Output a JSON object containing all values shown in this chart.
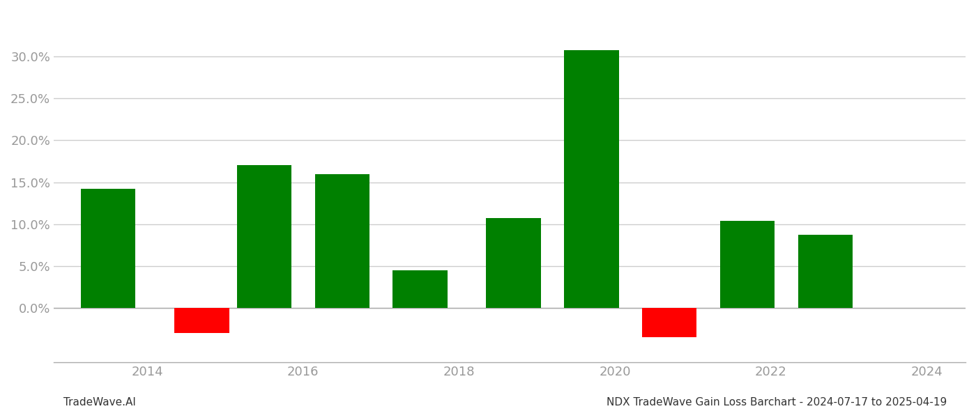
{
  "years": [
    2013.5,
    2014.7,
    2015.5,
    2016.5,
    2017.5,
    2018.7,
    2019.7,
    2020.7,
    2021.7,
    2022.7
  ],
  "values": [
    0.142,
    -0.03,
    0.17,
    0.16,
    0.045,
    0.107,
    0.308,
    -0.035,
    0.104,
    0.087
  ],
  "bar_width": 0.7,
  "color_positive": "#008000",
  "color_negative": "#ff0000",
  "ylim_min": -0.065,
  "ylim_max": 0.345,
  "yticks": [
    0.0,
    0.05,
    0.1,
    0.15,
    0.2,
    0.25,
    0.3
  ],
  "xtick_labels": [
    "2014",
    "2016",
    "2018",
    "2020",
    "2022",
    "2024"
  ],
  "xtick_positions": [
    2014,
    2016,
    2018,
    2020,
    2022,
    2024
  ],
  "xlim_min": 2012.8,
  "xlim_max": 2024.5,
  "footer_left": "TradeWave.AI",
  "footer_right": "NDX TradeWave Gain Loss Barchart - 2024-07-17 to 2025-04-19",
  "background_color": "#ffffff",
  "grid_color": "#cccccc",
  "label_color": "#999999",
  "footer_fontsize": 11,
  "tick_fontsize": 13
}
